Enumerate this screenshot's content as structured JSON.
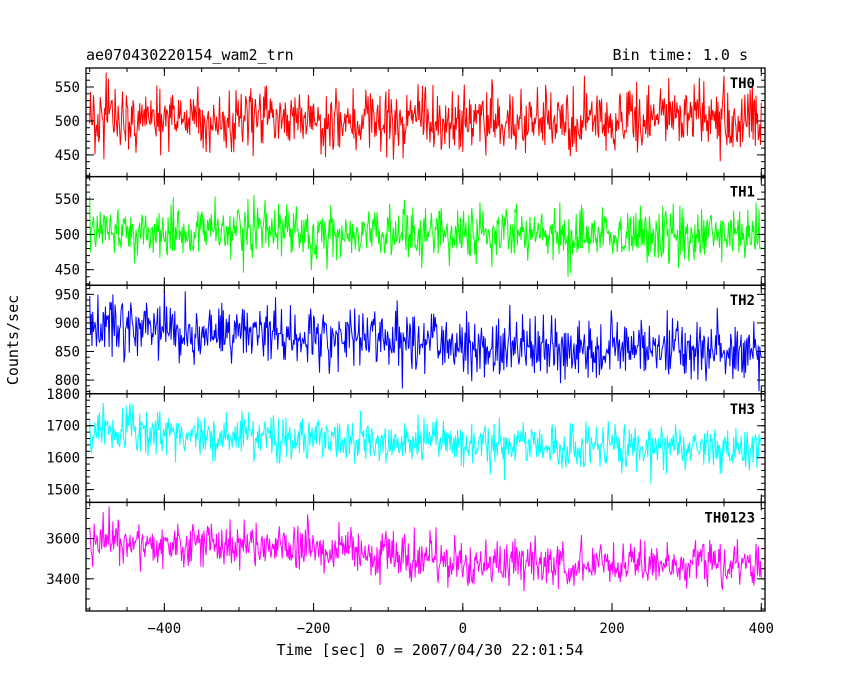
{
  "chart_data": {
    "type": "line",
    "title": "ae070430220154_wam2_trn",
    "subtitle": "Bin time: 1.0 s",
    "xlabel": "Time [sec] 0 = 2007/04/30 22:01:54",
    "ylabel": "Counts/sec",
    "xlim": [
      -505,
      405
    ],
    "xticks": [
      -400,
      -200,
      0,
      200,
      400
    ],
    "bin_time_s": 1.0,
    "series": [
      {
        "name": "TH0",
        "color": "#ff0000",
        "ylim": [
          418,
          578
        ],
        "yticks": [
          450,
          500,
          550
        ],
        "mean_points": [
          [
            -500,
            505
          ],
          [
            -250,
            500
          ],
          [
            0,
            500
          ],
          [
            200,
            498
          ],
          [
            400,
            505
          ]
        ],
        "noise_amplitude": 32
      },
      {
        "name": "TH1",
        "color": "#00ff00",
        "ylim": [
          428,
          582
        ],
        "yticks": [
          450,
          500,
          550
        ],
        "mean_points": [
          [
            -500,
            505
          ],
          [
            -250,
            503
          ],
          [
            0,
            500
          ],
          [
            200,
            500
          ],
          [
            400,
            500
          ]
        ],
        "noise_amplitude": 26
      },
      {
        "name": "TH2",
        "color": "#0000ff",
        "ylim": [
          776,
          966
        ],
        "yticks": [
          800,
          850,
          900,
          950
        ],
        "mean_points": [
          [
            -500,
            895
          ],
          [
            -300,
            880
          ],
          [
            -100,
            870
          ],
          [
            0,
            860
          ],
          [
            200,
            855
          ],
          [
            400,
            850
          ]
        ],
        "noise_amplitude": 35
      },
      {
        "name": "TH3",
        "color": "#00ffff",
        "ylim": [
          1460,
          1800
        ],
        "yticks": [
          1500,
          1600,
          1700,
          1800
        ],
        "mean_points": [
          [
            -500,
            1690
          ],
          [
            -300,
            1665
          ],
          [
            -100,
            1650
          ],
          [
            0,
            1640
          ],
          [
            200,
            1640
          ],
          [
            400,
            1630
          ]
        ],
        "noise_amplitude": 48
      },
      {
        "name": "TH0123",
        "color": "#ff00ff",
        "ylim": [
          3240,
          3780
        ],
        "yticks": [
          3400,
          3600
        ],
        "mean_points": [
          [
            -500,
            3590
          ],
          [
            -300,
            3560
          ],
          [
            -100,
            3520
          ],
          [
            0,
            3480
          ],
          [
            200,
            3470
          ],
          [
            400,
            3470
          ]
        ],
        "noise_amplitude": 75
      }
    ]
  }
}
